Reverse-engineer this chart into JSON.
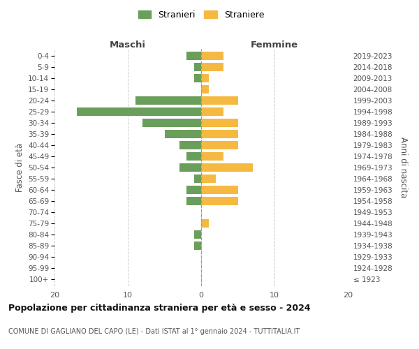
{
  "age_groups": [
    "100+",
    "95-99",
    "90-94",
    "85-89",
    "80-84",
    "75-79",
    "70-74",
    "65-69",
    "60-64",
    "55-59",
    "50-54",
    "45-49",
    "40-44",
    "35-39",
    "30-34",
    "25-29",
    "20-24",
    "15-19",
    "10-14",
    "5-9",
    "0-4"
  ],
  "birth_years": [
    "≤ 1923",
    "1924-1928",
    "1929-1933",
    "1934-1938",
    "1939-1943",
    "1944-1948",
    "1949-1953",
    "1954-1958",
    "1959-1963",
    "1964-1968",
    "1969-1973",
    "1974-1978",
    "1979-1983",
    "1984-1988",
    "1989-1993",
    "1994-1998",
    "1999-2003",
    "2004-2008",
    "2009-2013",
    "2014-2018",
    "2019-2023"
  ],
  "maschi": [
    0,
    0,
    0,
    1,
    1,
    0,
    0,
    2,
    2,
    1,
    3,
    2,
    3,
    5,
    8,
    17,
    9,
    0,
    1,
    1,
    2
  ],
  "femmine": [
    0,
    0,
    0,
    0,
    0,
    1,
    0,
    5,
    5,
    2,
    7,
    3,
    5,
    5,
    5,
    3,
    5,
    1,
    1,
    3,
    3
  ],
  "maschi_color": "#6a9e5b",
  "femmine_color": "#f5b942",
  "title": "Popolazione per cittadinanza straniera per età e sesso - 2024",
  "subtitle": "COMUNE DI GAGLIANO DEL CAPO (LE) - Dati ISTAT al 1° gennaio 2024 - TUTTITALIA.IT",
  "xlabel_left": "Maschi",
  "xlabel_right": "Femmine",
  "ylabel_left": "Fasce di età",
  "ylabel_right": "Anni di nascita",
  "legend_stranieri": "Stranieri",
  "legend_straniere": "Straniere",
  "xlim": 20,
  "background_color": "#ffffff",
  "grid_color": "#cccccc",
  "bar_height": 0.75
}
